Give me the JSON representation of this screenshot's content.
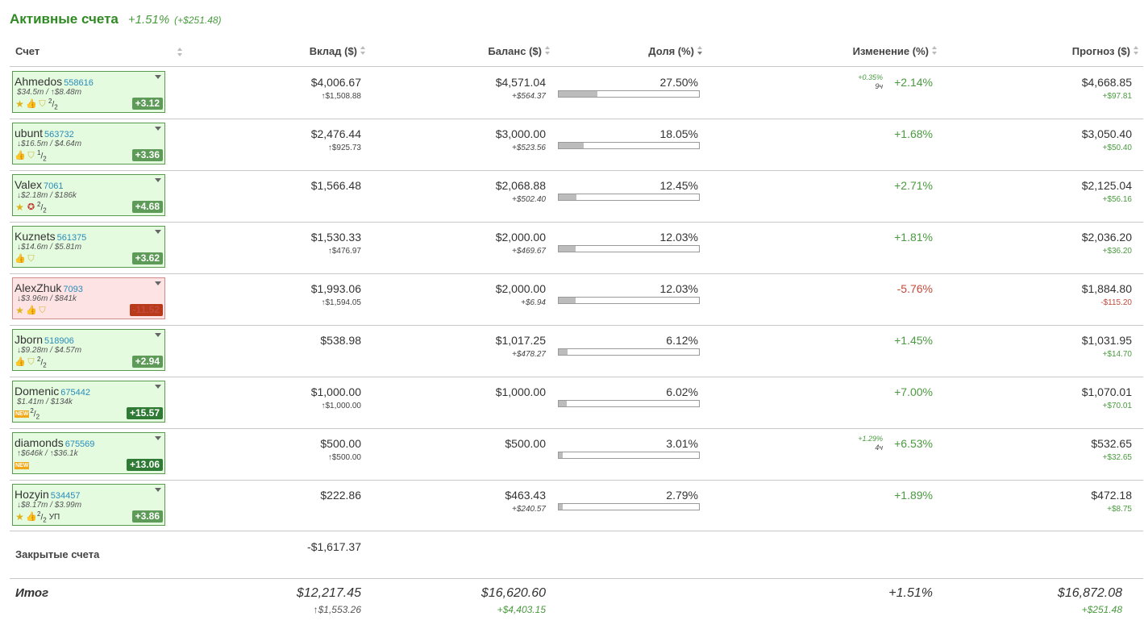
{
  "header": {
    "title": "Активные счета",
    "change_pct": "+1.51%",
    "change_abs": "(+$251.48)"
  },
  "columns": {
    "account": "Счет",
    "deposit": "Вклад ($)",
    "balance": "Баланс ($)",
    "share": "Доля (%)",
    "change": "Изменение (%)",
    "forecast": "Прогноз ($)"
  },
  "rows": [
    {
      "name": "Ahmedos",
      "id": "558616",
      "volume": "$34.5m / ↑$8.48m",
      "icons": [
        "star-icon",
        "thumbs-up-icon",
        "shield-icon"
      ],
      "frac_num": "2",
      "frac_den": "2",
      "score": "+3.12",
      "score_style": "normal",
      "deposit": "$4,006.67",
      "deposit_sub": "↑$1,508.88",
      "balance": "$4,571.04",
      "balance_sub": "+$564.37",
      "share": "27.50%",
      "share_value": 27.5,
      "change_note_pct": "+0.35%",
      "change_note_time": "9ч",
      "change": "+2.14%",
      "change_sign": "pos",
      "forecast": "$4,668.85",
      "forecast_sub": "+$97.81",
      "forecast_sign": "pos"
    },
    {
      "name": "ubunt",
      "id": "563732",
      "volume": "↓$16.5m / $4.64m",
      "icons": [
        "thumbs-up-icon",
        "shield-icon"
      ],
      "frac_num": "1",
      "frac_den": "2",
      "score": "+3.36",
      "score_style": "normal",
      "deposit": "$2,476.44",
      "deposit_sub": "↑$925.73",
      "balance": "$3,000.00",
      "balance_sub": "+$523.56",
      "share": "18.05%",
      "share_value": 18.05,
      "change_note_pct": "",
      "change_note_time": "",
      "change": "+1.68%",
      "change_sign": "pos",
      "forecast": "$3,050.40",
      "forecast_sub": "+$50.40",
      "forecast_sign": "pos"
    },
    {
      "name": "Valex",
      "id": "7061",
      "volume": "↓$2.18m / $186k",
      "icons": [
        "star-icon",
        "award-badge-icon"
      ],
      "frac_num": "2",
      "frac_den": "2",
      "score": "+4.68",
      "score_style": "normal",
      "deposit": "$1,566.48",
      "deposit_sub": "",
      "balance": "$2,068.88",
      "balance_sub": "+$502.40",
      "share": "12.45%",
      "share_value": 12.45,
      "change_note_pct": "",
      "change_note_time": "",
      "change": "+2.71%",
      "change_sign": "pos",
      "forecast": "$2,125.04",
      "forecast_sub": "+$56.16",
      "forecast_sign": "pos"
    },
    {
      "name": "Kuznets",
      "id": "561375",
      "volume": "↓$14.6m / $5.81m",
      "icons": [
        "thumbs-up-icon",
        "shield-icon"
      ],
      "frac_num": "",
      "frac_den": "",
      "score": "+3.62",
      "score_style": "normal",
      "deposit": "$1,530.33",
      "deposit_sub": "↑$476.97",
      "balance": "$2,000.00",
      "balance_sub": "+$469.67",
      "share": "12.03%",
      "share_value": 12.03,
      "change_note_pct": "",
      "change_note_time": "",
      "change": "+1.81%",
      "change_sign": "pos",
      "forecast": "$2,036.20",
      "forecast_sub": "+$36.20",
      "forecast_sign": "pos"
    },
    {
      "name": "AlexZhuk",
      "id": "7093",
      "volume": "↓$3.96m / $841k",
      "icons": [
        "star-icon",
        "thumbs-up-icon",
        "shield-icon"
      ],
      "frac_num": "",
      "frac_den": "",
      "score": "-11.52",
      "score_style": "neg",
      "deposit": "$1,993.06",
      "deposit_sub": "↑$1,594.05",
      "balance": "$2,000.00",
      "balance_sub": "+$6.94",
      "share": "12.03%",
      "share_value": 12.03,
      "change_note_pct": "",
      "change_note_time": "",
      "change": "-5.76%",
      "change_sign": "neg",
      "forecast": "$1,884.80",
      "forecast_sub": "-$115.20",
      "forecast_sign": "neg"
    },
    {
      "name": "Jborn",
      "id": "518906",
      "volume": "↓$9.28m / $4.57m",
      "icons": [
        "thumbs-up-icon",
        "shield-icon"
      ],
      "frac_num": "2",
      "frac_den": "2",
      "score": "+2.94",
      "score_style": "normal",
      "deposit": "$538.98",
      "deposit_sub": "",
      "balance": "$1,017.25",
      "balance_sub": "+$478.27",
      "share": "6.12%",
      "share_value": 6.12,
      "change_note_pct": "",
      "change_note_time": "",
      "change": "+1.45%",
      "change_sign": "pos",
      "forecast": "$1,031.95",
      "forecast_sub": "+$14.70",
      "forecast_sign": "pos"
    },
    {
      "name": "Domenic",
      "id": "675442",
      "volume": "$1.41m / $134k",
      "icons": [
        "new-badge-icon"
      ],
      "frac_num": "2",
      "frac_den": "2",
      "score": "+15.57",
      "score_style": "dark",
      "deposit": "$1,000.00",
      "deposit_sub": "↑$1,000.00",
      "balance": "$1,000.00",
      "balance_sub": "",
      "share": "6.02%",
      "share_value": 6.02,
      "change_note_pct": "",
      "change_note_time": "",
      "change": "+7.00%",
      "change_sign": "pos",
      "forecast": "$1,070.01",
      "forecast_sub": "+$70.01",
      "forecast_sign": "pos"
    },
    {
      "name": "diamonds",
      "id": "675569",
      "volume": "↑$646k / ↑$36.1k",
      "icons": [
        "new-badge-icon"
      ],
      "frac_num": "",
      "frac_den": "",
      "score": "+13.06",
      "score_style": "dark",
      "deposit": "$500.00",
      "deposit_sub": "↑$500.00",
      "balance": "$500.00",
      "balance_sub": "",
      "share": "3.01%",
      "share_value": 3.01,
      "change_note_pct": "+1.29%",
      "change_note_time": "4ч",
      "change": "+6.53%",
      "change_sign": "pos",
      "forecast": "$532.65",
      "forecast_sub": "+$32.65",
      "forecast_sign": "pos"
    },
    {
      "name": "Hozyin",
      "id": "534457",
      "volume": "↓$8.17m / $3.99m",
      "icons": [
        "star-icon",
        "thumbs-up-icon"
      ],
      "frac_num": "2",
      "frac_den": "2",
      "suffix": "УП",
      "score": "+3.86",
      "score_style": "normal",
      "deposit": "$222.86",
      "deposit_sub": "",
      "balance": "$463.43",
      "balance_sub": "+$240.57",
      "share": "2.79%",
      "share_value": 2.79,
      "change_note_pct": "",
      "change_note_time": "",
      "change": "+1.89%",
      "change_sign": "pos",
      "forecast": "$472.18",
      "forecast_sub": "+$8.75",
      "forecast_sign": "pos"
    }
  ],
  "closed": {
    "label": "Закрытые счета",
    "deposit": "-$1,617.37"
  },
  "total": {
    "label": "Итог",
    "deposit": "$12,217.45",
    "deposit_sub": "↑$1,553.26",
    "balance": "$16,620.60",
    "balance_sub": "+$4,403.15",
    "change": "+1.51%",
    "forecast": "$16,872.08",
    "forecast_sub": "+$251.48"
  },
  "colors": {
    "positive": "#4a9a3f",
    "negative": "#c24a3a",
    "title": "#2f8a24"
  }
}
